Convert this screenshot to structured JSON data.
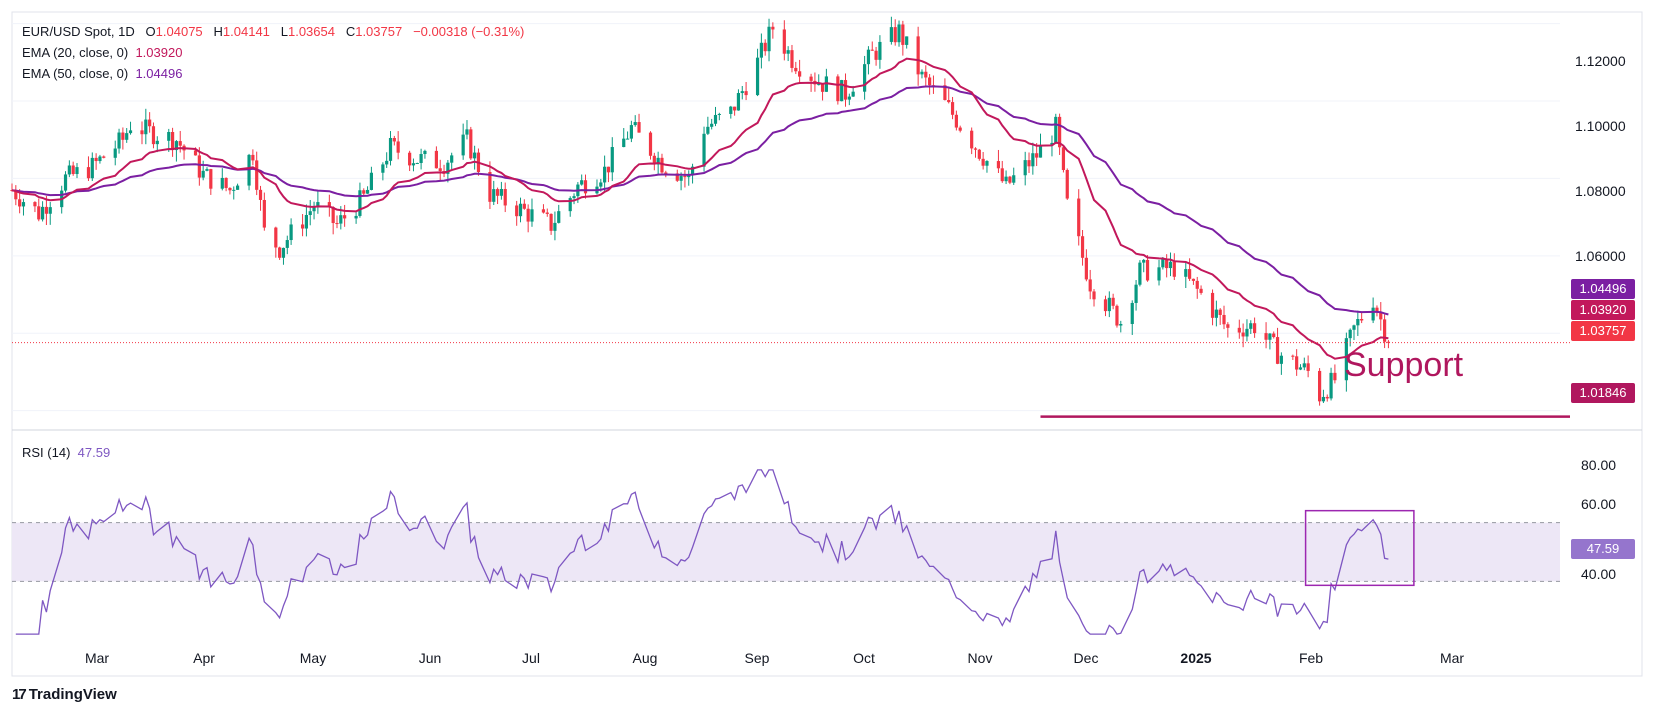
{
  "header": {
    "symbol": "EUR/USD Spot, 1D",
    "open_label": "O",
    "open": "1.04075",
    "high_label": "H",
    "high": "1.04141",
    "low_label": "L",
    "low": "1.03654",
    "close_label": "C",
    "close": "1.03757",
    "change": "−0.00318 (−0.31%)",
    "ema20_label": "EMA (20, close, 0)",
    "ema20_value": "1.03920",
    "ema50_label": "EMA (50, close, 0)",
    "ema50_value": "1.04496",
    "rsi_label": "RSI (14)",
    "rsi_value": "47.59"
  },
  "colors": {
    "up": "#089981",
    "down": "#f23645",
    "ema20": "#c2185b",
    "ema50": "#7b1fa2",
    "rsi": "#7e57c2",
    "support": "#b0175e",
    "rsi_band": "#ede7f6"
  },
  "price_axis": {
    "ticks": [
      "1.12000",
      "1.10000",
      "1.08000",
      "1.06000"
    ],
    "badges": {
      "ema50": "1.04496",
      "ema20": "1.03920",
      "last": "1.03757",
      "support": "1.01846"
    }
  },
  "rsi_axis": {
    "ticks": [
      "80.00",
      "60.00",
      "40.00"
    ],
    "badge": "47.59"
  },
  "time_axis": {
    "labels": [
      "Mar",
      "Apr",
      "May",
      "Jun",
      "Jul",
      "Aug",
      "Sep",
      "Oct",
      "Nov",
      "Dec",
      "2025",
      "Feb",
      "Mar"
    ]
  },
  "annotation": {
    "support_text": "Support"
  },
  "branding": {
    "logo_mark": "17",
    "logo_text": "TradingView"
  },
  "chart_data": {
    "type": "candlestick",
    "title": "EUR/USD Spot, 1D",
    "ylim": [
      1.015,
      1.123
    ],
    "x_range": [
      "2024-02-06",
      "2025-03-31"
    ],
    "grid": true,
    "last_close": 1.03757,
    "support_level": 1.01846,
    "series": [
      {
        "name": "EMA (20, close, 0)",
        "last_value": 1.0392
      },
      {
        "name": "EMA (50, close, 0)",
        "last_value": 1.04496
      }
    ],
    "price_path": [
      [
        "2024-02-06",
        1.077
      ],
      [
        "2024-02-13",
        1.071
      ],
      [
        "2024-02-20",
        1.08
      ],
      [
        "2024-02-27",
        1.083
      ],
      [
        "2024-03-06",
        1.09
      ],
      [
        "2024-03-08",
        1.094
      ],
      [
        "2024-03-13",
        1.092
      ],
      [
        "2024-03-20",
        1.09
      ],
      [
        "2024-03-27",
        1.081
      ],
      [
        "2024-04-03",
        1.077
      ],
      [
        "2024-04-09",
        1.087
      ],
      [
        "2024-04-12",
        1.066
      ],
      [
        "2024-04-16",
        1.062
      ],
      [
        "2024-04-25",
        1.073
      ],
      [
        "2024-05-01",
        1.068
      ],
      [
        "2024-05-08",
        1.075
      ],
      [
        "2024-05-15",
        1.088
      ],
      [
        "2024-05-22",
        1.085
      ],
      [
        "2024-05-29",
        1.084
      ],
      [
        "2024-06-04",
        1.09
      ],
      [
        "2024-06-10",
        1.076
      ],
      [
        "2024-06-18",
        1.072
      ],
      [
        "2024-06-26",
        1.068
      ],
      [
        "2024-07-03",
        1.078
      ],
      [
        "2024-07-10",
        1.082
      ],
      [
        "2024-07-17",
        1.093
      ],
      [
        "2024-07-25",
        1.084
      ],
      [
        "2024-08-01",
        1.08
      ],
      [
        "2024-08-05",
        1.093
      ],
      [
        "2024-08-12",
        1.097
      ],
      [
        "2024-08-19",
        1.11
      ],
      [
        "2024-08-23",
        1.119
      ],
      [
        "2024-08-28",
        1.111
      ],
      [
        "2024-09-04",
        1.105
      ],
      [
        "2024-09-11",
        1.102
      ],
      [
        "2024-09-18",
        1.112
      ],
      [
        "2024-09-25",
        1.118
      ],
      [
        "2024-10-01",
        1.106
      ],
      [
        "2024-10-08",
        1.098
      ],
      [
        "2024-10-16",
        1.087
      ],
      [
        "2024-10-23",
        1.078
      ],
      [
        "2024-10-31",
        1.086
      ],
      [
        "2024-11-05",
        1.093
      ],
      [
        "2024-11-08",
        1.073
      ],
      [
        "2024-11-14",
        1.053
      ],
      [
        "2024-11-22",
        1.043
      ],
      [
        "2024-11-27",
        1.056
      ],
      [
        "2024-12-06",
        1.057
      ],
      [
        "2024-12-13",
        1.05
      ],
      [
        "2024-12-20",
        1.041
      ],
      [
        "2024-12-27",
        1.042
      ],
      [
        "2025-01-02",
        1.035
      ],
      [
        "2025-01-10",
        1.03
      ],
      [
        "2025-01-13",
        1.024
      ],
      [
        "2025-01-17",
        1.028
      ],
      [
        "2025-01-22",
        1.041
      ],
      [
        "2025-01-27",
        1.049
      ],
      [
        "2025-01-31",
        1.038
      ]
    ],
    "rsi": {
      "name": "RSI (14)",
      "last_value": 47.59,
      "levels": [
        60,
        40
      ],
      "ylim": [
        20,
        80
      ],
      "highlight_range": [
        "2025-01-13",
        "2025-02-03"
      ]
    }
  }
}
